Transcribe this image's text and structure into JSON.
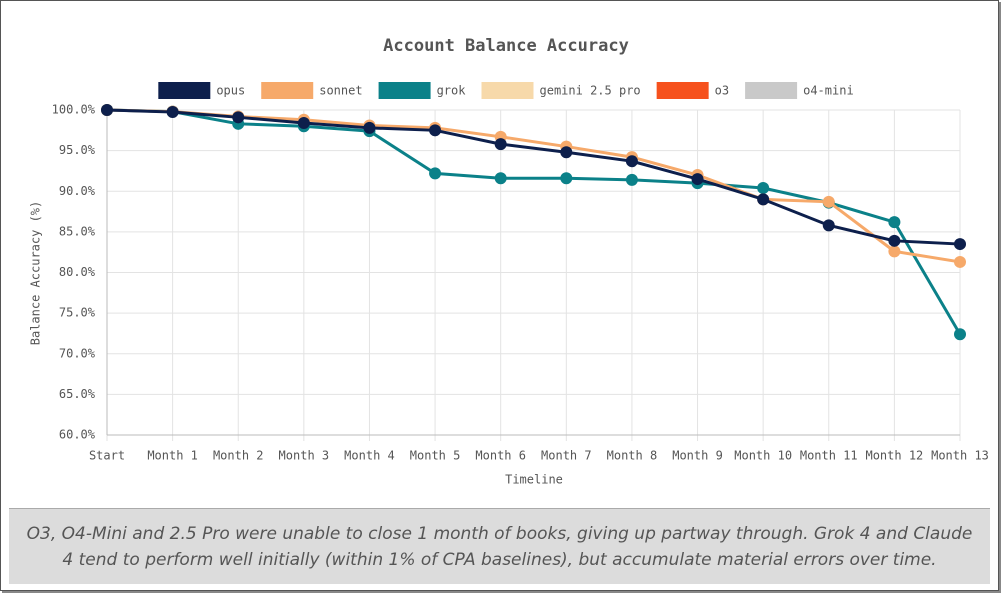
{
  "chart_data": {
    "type": "line",
    "title": "Account Balance Accuracy",
    "x_label": "Timeline",
    "y_label": "Balance Accuracy (%)",
    "categories": [
      "Start",
      "Month 1",
      "Month 2",
      "Month 3",
      "Month 4",
      "Month 5",
      "Month 6",
      "Month 7",
      "Month 8",
      "Month 9",
      "Month 10",
      "Month 11",
      "Month 12",
      "Month 13"
    ],
    "series": [
      {
        "name": "opus",
        "color": "#0d1f4c",
        "values": [
          100,
          99.75,
          99.1,
          98.4,
          97.8,
          97.5,
          95.8,
          94.8,
          93.7,
          91.5,
          89.0,
          85.8,
          83.9,
          83.5
        ]
      },
      {
        "name": "sonnet",
        "color": "#f6a96a",
        "values": [
          100,
          99.8,
          99.2,
          98.8,
          98.1,
          97.8,
          96.7,
          95.5,
          94.2,
          92.0,
          89.0,
          88.7,
          82.6,
          81.3
        ]
      },
      {
        "name": "grok",
        "color": "#0b8189",
        "values": [
          100,
          99.8,
          98.3,
          98.0,
          97.4,
          92.2,
          91.6,
          91.6,
          91.4,
          91.0,
          90.4,
          88.6,
          86.2,
          72.4
        ]
      },
      {
        "name": "gemini 2.5 pro",
        "color": "#f7d9aa",
        "values": [
          100,
          null,
          null,
          null,
          null,
          null,
          null,
          null,
          null,
          null,
          null,
          null,
          null,
          null
        ]
      },
      {
        "name": "o3",
        "color": "#f6511d",
        "values": [
          null,
          null,
          null,
          null,
          null,
          null,
          null,
          null,
          null,
          null,
          null,
          null,
          null,
          null
        ]
      },
      {
        "name": "o4-mini",
        "color": "#c9c9c9",
        "values": [
          null,
          null,
          null,
          null,
          null,
          null,
          null,
          null,
          null,
          null,
          null,
          null,
          null,
          null
        ]
      }
    ],
    "ylim": [
      60,
      100
    ],
    "yticks": [
      {
        "value": 60,
        "label": "60.0%"
      },
      {
        "value": 65,
        "label": "65.0%"
      },
      {
        "value": 70,
        "label": "70.0%"
      },
      {
        "value": 75,
        "label": "75.0%"
      },
      {
        "value": 80,
        "label": "80.0%"
      },
      {
        "value": 85,
        "label": "85.0%"
      },
      {
        "value": 90,
        "label": "90.0%"
      },
      {
        "value": 95,
        "label": "95.0%"
      },
      {
        "value": 100,
        "label": "100.0%"
      }
    ],
    "grid": true,
    "legend": "top",
    "caption": "O3, O4-Mini and 2.5 Pro were unable to close 1 month of books, giving up partway through. Grok 4 and Claude 4 tend to perform well initially (within 1% of CPA baselines), but accumulate material errors over time."
  }
}
